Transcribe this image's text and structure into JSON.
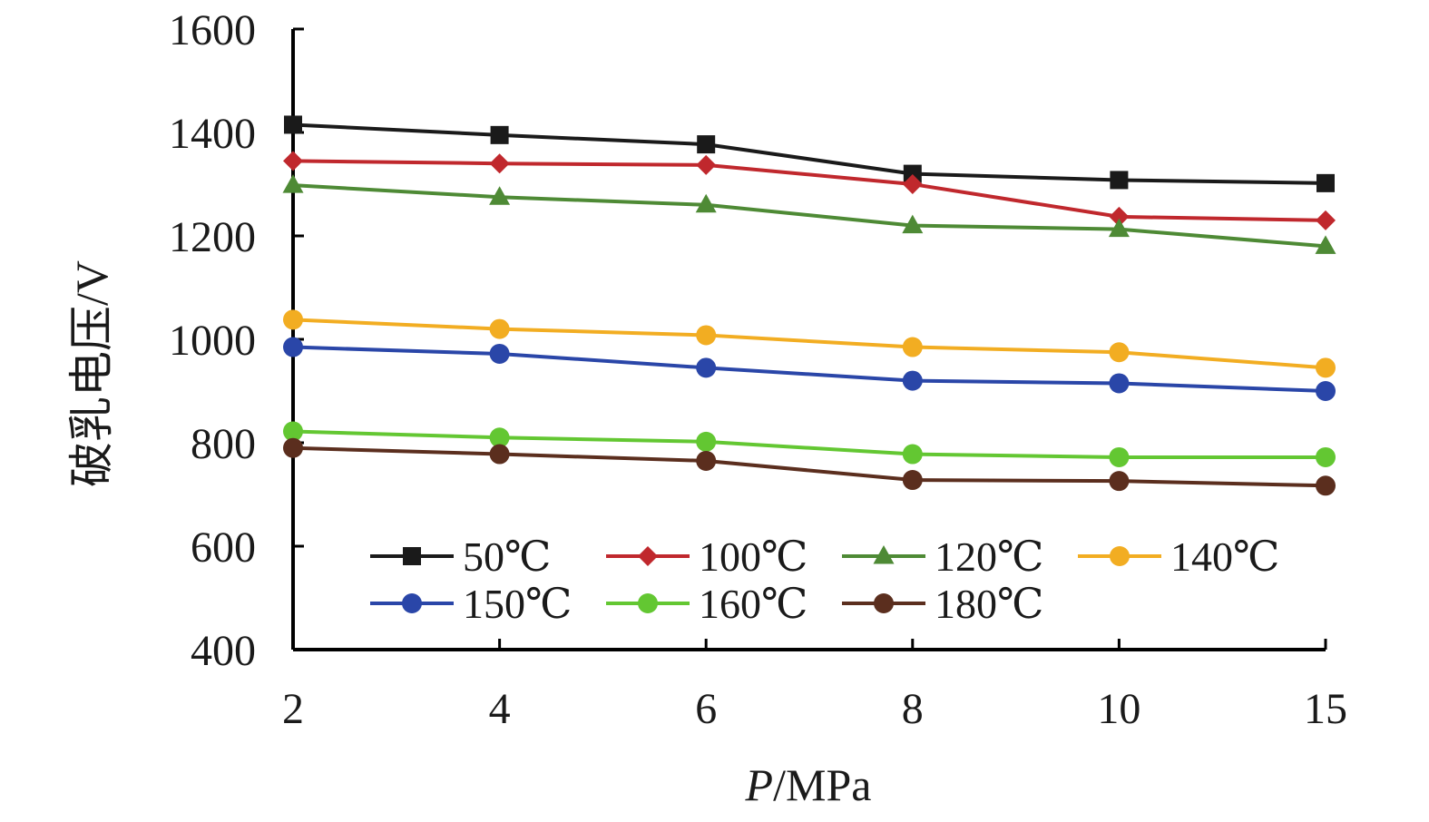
{
  "chart_data": {
    "type": "line",
    "categories": [
      "2",
      "4",
      "6",
      "8",
      "10",
      "15"
    ],
    "xlabel_italic": "P",
    "xlabel_unit": "/MPa",
    "ylabel": "破乳电压/V",
    "ylim": [
      400,
      1600
    ],
    "yticks": [
      400,
      600,
      800,
      1000,
      1200,
      1400,
      1600
    ],
    "grid": false,
    "legend_position": "bottom-inside",
    "series": [
      {
        "name": "50℃",
        "color": "#1a1a1a",
        "marker": "square",
        "values": [
          1415,
          1395,
          1377,
          1320,
          1308,
          1302
        ]
      },
      {
        "name": "100℃",
        "color": "#c0282d",
        "marker": "diamond",
        "values": [
          1345,
          1340,
          1337,
          1300,
          1237,
          1230
        ]
      },
      {
        "name": "120℃",
        "color": "#4e8a35",
        "marker": "triangle",
        "values": [
          1298,
          1275,
          1260,
          1220,
          1213,
          1180
        ]
      },
      {
        "name": "140℃",
        "color": "#f2ad22",
        "marker": "circle",
        "values": [
          1038,
          1020,
          1008,
          985,
          975,
          945
        ]
      },
      {
        "name": "150℃",
        "color": "#2a46a8",
        "marker": "circle",
        "values": [
          985,
          972,
          945,
          920,
          915,
          900
        ]
      },
      {
        "name": "160℃",
        "color": "#63c732",
        "marker": "circle",
        "values": [
          822,
          810,
          802,
          778,
          772,
          772
        ]
      },
      {
        "name": "180℃",
        "color": "#5b2e1e",
        "marker": "circle",
        "values": [
          790,
          778,
          765,
          728,
          726,
          717
        ]
      }
    ]
  }
}
